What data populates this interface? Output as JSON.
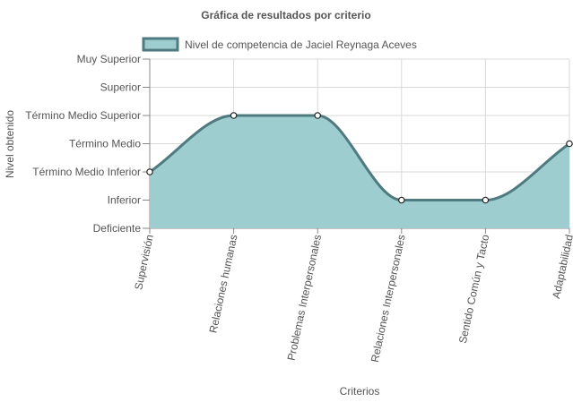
{
  "chart_data": {
    "type": "area",
    "title": "Gráfica de resultados por criterio",
    "xlabel": "Criterios",
    "ylabel": "Nivel obtenido",
    "categories": [
      "Supervisión",
      "Relaciones humanas",
      "Problemas Interpersonales",
      "Relaciones Interpersonales",
      "Sentido Común y Tacto",
      "Adaptabilidad"
    ],
    "y_levels": [
      "Deficiente",
      "Inferior",
      "Término Medio Inferior",
      "Término Medio",
      "Término Medio Superior",
      "Superior",
      "Muy Superior"
    ],
    "series": [
      {
        "name": "Nivel de competencia de Jaciel Reynaga Aceves",
        "values": [
          "Término Medio Inferior",
          "Término Medio Superior",
          "Término Medio Superior",
          "Inferior",
          "Inferior",
          "Término Medio"
        ]
      }
    ],
    "ylim": [
      "Deficiente",
      "Muy Superior"
    ],
    "grid": true,
    "legend_position": "top",
    "colors": {
      "fill": "#9ecdd0",
      "line": "#4e7a80",
      "grid": "#d9d9d9",
      "point_fill": "#ffffff"
    }
  }
}
